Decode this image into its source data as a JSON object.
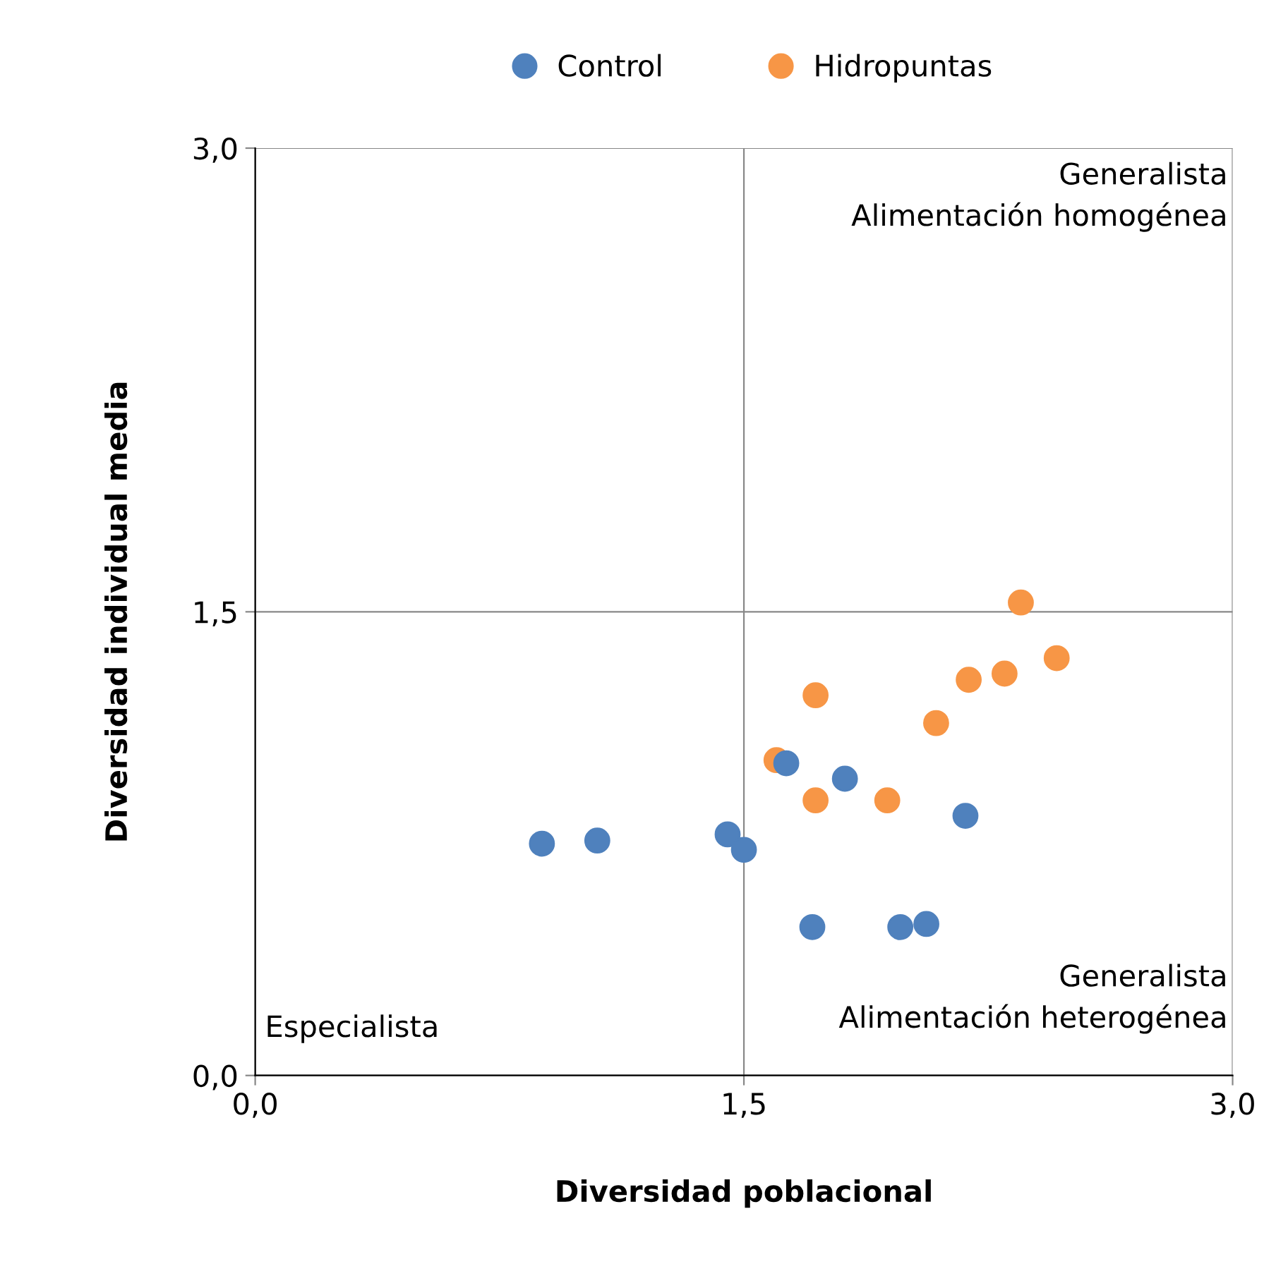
{
  "chart_data": {
    "type": "scatter",
    "xlabel": "Diversidad poblacional",
    "ylabel": "Diversidad individual media",
    "xlim": [
      0,
      3
    ],
    "ylim": [
      0,
      3
    ],
    "xticks": [
      {
        "value": 0,
        "label": "0,0"
      },
      {
        "value": 1.5,
        "label": "1,5"
      },
      {
        "value": 3,
        "label": "3,0"
      }
    ],
    "yticks": [
      {
        "value": 0,
        "label": "0,0"
      },
      {
        "value": 1.5,
        "label": "1,5"
      },
      {
        "value": 3,
        "label": "3,0"
      }
    ],
    "grid": true,
    "legend": "top",
    "marker": "circle",
    "series": [
      {
        "name": "Control",
        "color": "#4f81bd",
        "x": [
          0.88,
          1.05,
          1.45,
          1.5,
          1.63,
          1.81,
          1.71,
          1.98,
          2.06,
          2.18
        ],
        "values": [
          0.75,
          0.76,
          0.78,
          0.73,
          1.01,
          0.96,
          0.48,
          0.48,
          0.49,
          0.84
        ]
      },
      {
        "name": "Hidropuntas",
        "color": "#f79646",
        "x": [
          1.6,
          1.72,
          1.72,
          1.94,
          2.09,
          2.19,
          2.3,
          2.35,
          2.46
        ],
        "values": [
          1.02,
          1.23,
          0.89,
          0.89,
          1.14,
          1.28,
          1.3,
          1.53,
          1.35
        ]
      }
    ],
    "annotations": [
      "Generalista\nAlimentación homogénea",
      "Generalista\nAlimentación heterogénea",
      "Especialista"
    ]
  }
}
